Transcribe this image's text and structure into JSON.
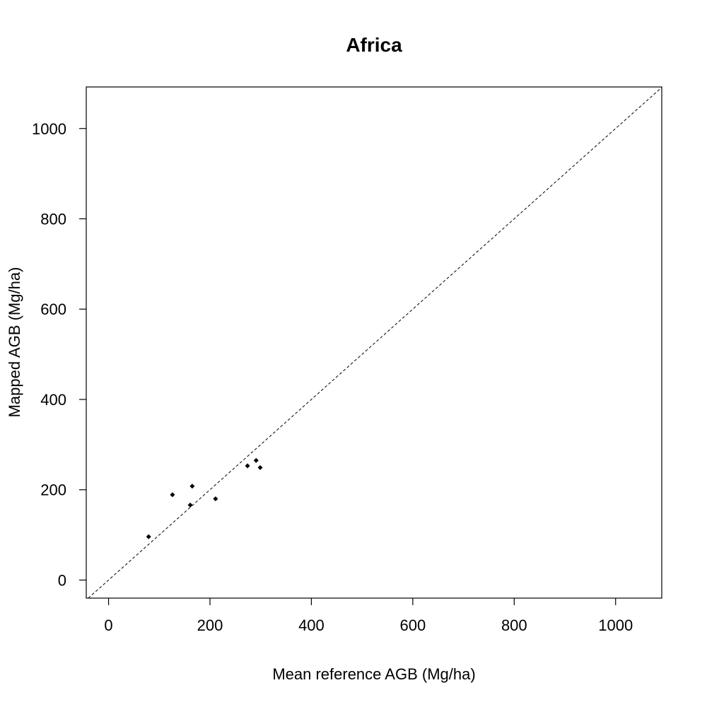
{
  "chart_data": {
    "type": "scatter",
    "title": "Africa",
    "xlabel": "Mean reference AGB (Mg/ha)",
    "ylabel": "Mapped AGB (Mg/ha)",
    "xlim": [
      -44,
      1091
    ],
    "ylim": [
      -40,
      1092
    ],
    "x_ticks": [
      0,
      200,
      400,
      600,
      800,
      1000
    ],
    "y_ticks": [
      0,
      200,
      400,
      600,
      800,
      1000
    ],
    "x_tick_labels": [
      "0",
      "200",
      "400",
      "600",
      "800",
      "1000"
    ],
    "y_tick_labels": [
      "0",
      "200",
      "400",
      "600",
      "800",
      "1000"
    ],
    "reference_line": "1:1",
    "grid": false,
    "point_color": "#000000",
    "points": [
      {
        "x": 79,
        "y": 96
      },
      {
        "x": 126,
        "y": 189
      },
      {
        "x": 161,
        "y": 166
      },
      {
        "x": 165,
        "y": 208
      },
      {
        "x": 211,
        "y": 180
      },
      {
        "x": 274,
        "y": 253
      },
      {
        "x": 291,
        "y": 265
      },
      {
        "x": 299,
        "y": 249
      }
    ]
  }
}
